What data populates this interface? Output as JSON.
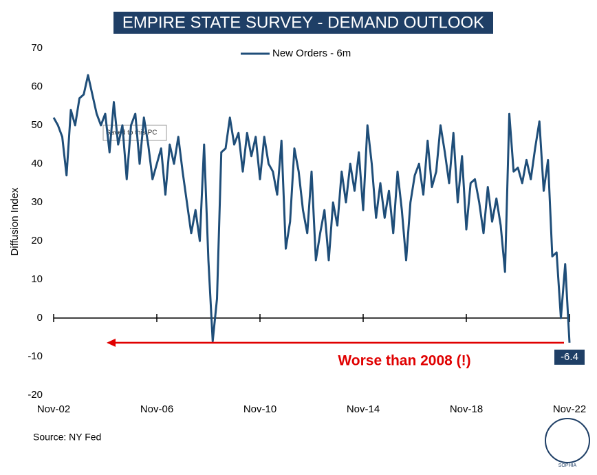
{
  "chart_data": {
    "type": "line",
    "title": "EMPIRE STATE SURVEY - DEMAND OUTLOOK",
    "y_label": "Diffusion Index",
    "source": "Source: NY Fed",
    "annotation": "Worse than 2008 (!)",
    "end_label": "-6.4",
    "tooltip": "Saved to this PC",
    "logo_text": "SOPHIA",
    "x": [
      "Nov-02",
      "Jan-03",
      "Mar-03",
      "May-03",
      "Jul-03",
      "Sep-03",
      "Nov-03",
      "Jan-04",
      "Mar-04",
      "May-04",
      "Jul-04",
      "Sep-04",
      "Nov-04",
      "Jan-05",
      "Mar-05",
      "May-05",
      "Jul-05",
      "Sep-05",
      "Nov-05",
      "Jan-06",
      "Mar-06",
      "May-06",
      "Jul-06",
      "Sep-06",
      "Nov-06",
      "Jan-07",
      "Mar-07",
      "May-07",
      "Jul-07",
      "Sep-07",
      "Nov-07",
      "Jan-08",
      "Mar-08",
      "May-08",
      "Jul-08",
      "Sep-08",
      "Nov-08",
      "Jan-09",
      "Mar-09",
      "May-09",
      "Jul-09",
      "Sep-09",
      "Nov-09",
      "Jan-10",
      "Mar-10",
      "May-10",
      "Jul-10",
      "Sep-10",
      "Nov-10",
      "Jan-11",
      "Mar-11",
      "May-11",
      "Jul-11",
      "Sep-11",
      "Nov-11",
      "Jan-12",
      "Mar-12",
      "May-12",
      "Jul-12",
      "Sep-12",
      "Nov-12",
      "Jan-13",
      "Mar-13",
      "May-13",
      "Jul-13",
      "Sep-13",
      "Nov-13",
      "Jan-14",
      "Mar-14",
      "May-14",
      "Jul-14",
      "Sep-14",
      "Nov-14",
      "Jan-15",
      "Mar-15",
      "May-15",
      "Jul-15",
      "Sep-15",
      "Nov-15",
      "Jan-16",
      "Mar-16",
      "May-16",
      "Jul-16",
      "Sep-16",
      "Nov-16",
      "Jan-17",
      "Mar-17",
      "May-17",
      "Jul-17",
      "Sep-17",
      "Nov-17",
      "Jan-18",
      "Mar-18",
      "May-18",
      "Jul-18",
      "Sep-18",
      "Nov-18",
      "Jan-19",
      "Mar-19",
      "May-19",
      "Jul-19",
      "Sep-19",
      "Nov-19",
      "Jan-20",
      "Mar-20",
      "May-20",
      "Jul-20",
      "Sep-20",
      "Nov-20",
      "Jan-21",
      "Mar-21",
      "May-21",
      "Jul-21",
      "Sep-21",
      "Nov-21",
      "Jan-22",
      "Mar-22",
      "May-22",
      "Jul-22",
      "Sep-22",
      "Nov-22"
    ],
    "series": [
      {
        "name": "New Orders - 6m",
        "color": "#1f4e79",
        "values": [
          52,
          50,
          47,
          37,
          54,
          50,
          57,
          58,
          63,
          58,
          53,
          50,
          53,
          43,
          56,
          45,
          50,
          36,
          50,
          53,
          40,
          52,
          45,
          36,
          40,
          44,
          32,
          45,
          40,
          47,
          38,
          30,
          22,
          28,
          20,
          45,
          15,
          -6,
          5,
          43,
          44,
          52,
          45,
          48,
          38,
          48,
          42,
          47,
          36,
          47,
          40,
          38,
          32,
          46,
          18,
          25,
          44,
          38,
          28,
          22,
          38,
          15,
          22,
          28,
          15,
          30,
          24,
          38,
          30,
          40,
          33,
          43,
          28,
          50,
          40,
          26,
          35,
          26,
          33,
          22,
          38,
          28,
          15,
          30,
          37,
          40,
          32,
          46,
          34,
          38,
          50,
          43,
          35,
          48,
          30,
          42,
          23,
          35,
          36,
          30,
          22,
          34,
          25,
          31,
          24,
          12,
          53,
          38,
          39,
          35,
          41,
          36,
          44,
          51,
          33,
          41,
          16,
          17,
          0,
          14,
          -6.4
        ]
      }
    ],
    "ylim": [
      -20,
      70
    ],
    "yticks": [
      -20,
      -10,
      0,
      10,
      20,
      30,
      40,
      50,
      60,
      70
    ],
    "xticks": [
      "Nov-02",
      "Nov-06",
      "Nov-10",
      "Nov-14",
      "Nov-18",
      "Nov-22"
    ]
  }
}
